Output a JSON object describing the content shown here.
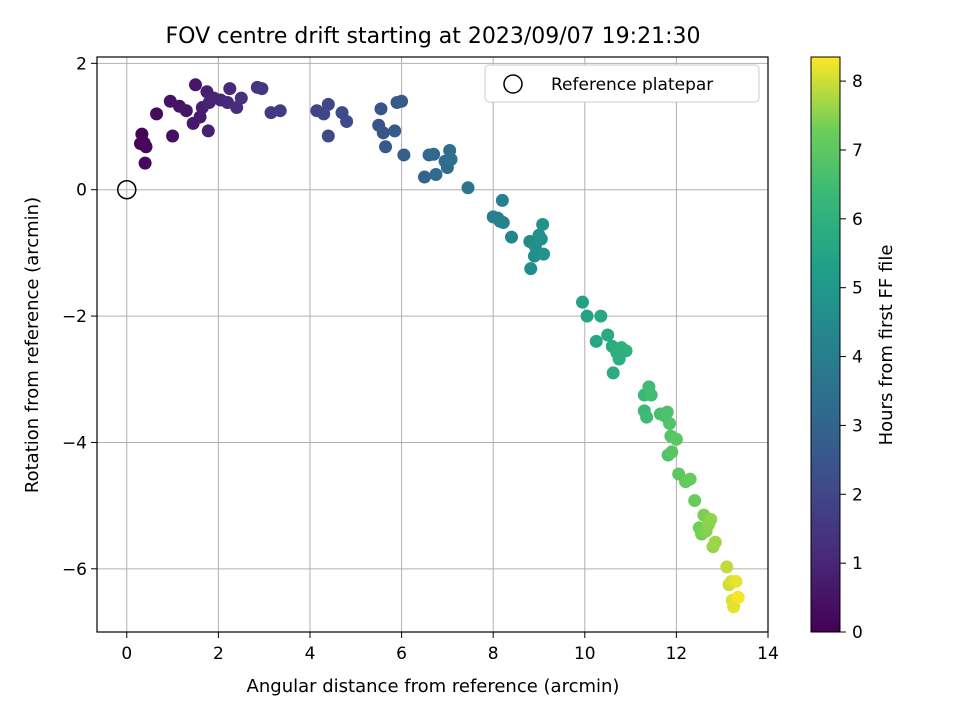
{
  "chart_data": {
    "type": "scatter",
    "title": "FOV centre drift starting at 2023/09/07 19:21:30",
    "xlabel": "Angular distance from reference (arcmin)",
    "ylabel": "Rotation from reference (arcmin)",
    "xlim": [
      -0.65,
      14
    ],
    "ylim": [
      -7,
      2.1
    ],
    "xticks": [
      0,
      2,
      4,
      6,
      8,
      10,
      12,
      14
    ],
    "yticks": [
      2,
      0,
      -2,
      -4,
      -6
    ],
    "grid": true,
    "legend": {
      "position": "top-right",
      "entries": [
        "Reference platepar"
      ]
    },
    "reference_point": {
      "x": 0,
      "y": 0,
      "label": "Reference platepar"
    },
    "colorbar": {
      "label": "Hours from first FF file",
      "min": 0,
      "max": 8.35,
      "ticks": [
        0,
        1,
        2,
        3,
        4,
        5,
        6,
        7,
        8
      ],
      "colormap": "viridis"
    },
    "points": [
      {
        "x": 0.33,
        "y": 0.88,
        "h": 0.05
      },
      {
        "x": 0.3,
        "y": 0.73,
        "h": 0.1
      },
      {
        "x": 0.38,
        "y": 0.74,
        "h": 0.15
      },
      {
        "x": 0.42,
        "y": 0.68,
        "h": 0.2
      },
      {
        "x": 0.4,
        "y": 0.42,
        "h": 0.25
      },
      {
        "x": 0.65,
        "y": 1.2,
        "h": 0.3
      },
      {
        "x": 1.0,
        "y": 0.85,
        "h": 0.4
      },
      {
        "x": 0.95,
        "y": 1.4,
        "h": 0.45
      },
      {
        "x": 1.15,
        "y": 1.32,
        "h": 0.5
      },
      {
        "x": 1.3,
        "y": 1.25,
        "h": 0.55
      },
      {
        "x": 1.5,
        "y": 1.66,
        "h": 0.6
      },
      {
        "x": 1.45,
        "y": 1.05,
        "h": 0.65
      },
      {
        "x": 1.6,
        "y": 1.15,
        "h": 0.7
      },
      {
        "x": 1.65,
        "y": 1.3,
        "h": 0.75
      },
      {
        "x": 1.75,
        "y": 1.55,
        "h": 0.8
      },
      {
        "x": 1.78,
        "y": 0.93,
        "h": 0.85
      },
      {
        "x": 1.8,
        "y": 1.38,
        "h": 0.9
      },
      {
        "x": 1.9,
        "y": 1.45,
        "h": 0.95
      },
      {
        "x": 2.05,
        "y": 1.42,
        "h": 1.0
      },
      {
        "x": 2.2,
        "y": 1.38,
        "h": 1.05
      },
      {
        "x": 2.25,
        "y": 1.6,
        "h": 1.1
      },
      {
        "x": 2.4,
        "y": 1.3,
        "h": 1.2
      },
      {
        "x": 2.5,
        "y": 1.45,
        "h": 1.3
      },
      {
        "x": 2.85,
        "y": 1.62,
        "h": 1.4
      },
      {
        "x": 2.95,
        "y": 1.6,
        "h": 1.5
      },
      {
        "x": 3.15,
        "y": 1.22,
        "h": 1.6
      },
      {
        "x": 3.35,
        "y": 1.25,
        "h": 1.7
      },
      {
        "x": 4.15,
        "y": 1.25,
        "h": 1.9
      },
      {
        "x": 4.3,
        "y": 1.2,
        "h": 1.95
      },
      {
        "x": 4.4,
        "y": 1.35,
        "h": 2.0
      },
      {
        "x": 4.4,
        "y": 0.85,
        "h": 2.05
      },
      {
        "x": 4.7,
        "y": 1.22,
        "h": 2.1
      },
      {
        "x": 4.8,
        "y": 1.08,
        "h": 2.15
      },
      {
        "x": 5.5,
        "y": 1.02,
        "h": 2.4
      },
      {
        "x": 5.55,
        "y": 1.28,
        "h": 2.45
      },
      {
        "x": 5.6,
        "y": 0.9,
        "h": 2.5
      },
      {
        "x": 5.65,
        "y": 0.68,
        "h": 2.55
      },
      {
        "x": 5.85,
        "y": 0.93,
        "h": 2.6
      },
      {
        "x": 5.9,
        "y": 1.38,
        "h": 2.65
      },
      {
        "x": 6.0,
        "y": 1.4,
        "h": 2.7
      },
      {
        "x": 6.05,
        "y": 0.55,
        "h": 2.8
      },
      {
        "x": 6.5,
        "y": 0.2,
        "h": 3.0
      },
      {
        "x": 6.6,
        "y": 0.55,
        "h": 3.1
      },
      {
        "x": 6.7,
        "y": 0.56,
        "h": 3.15
      },
      {
        "x": 6.75,
        "y": 0.24,
        "h": 3.2
      },
      {
        "x": 6.95,
        "y": 0.45,
        "h": 3.3
      },
      {
        "x": 7.0,
        "y": 0.35,
        "h": 3.35
      },
      {
        "x": 7.05,
        "y": 0.62,
        "h": 3.4
      },
      {
        "x": 7.08,
        "y": 0.48,
        "h": 3.45
      },
      {
        "x": 7.45,
        "y": 0.03,
        "h": 3.7
      },
      {
        "x": 8.0,
        "y": -0.43,
        "h": 4.0
      },
      {
        "x": 8.1,
        "y": -0.45,
        "h": 4.05
      },
      {
        "x": 8.15,
        "y": -0.5,
        "h": 4.1
      },
      {
        "x": 8.2,
        "y": -0.17,
        "h": 4.15
      },
      {
        "x": 8.22,
        "y": -0.52,
        "h": 4.2
      },
      {
        "x": 8.4,
        "y": -0.75,
        "h": 4.3
      },
      {
        "x": 8.8,
        "y": -0.82,
        "h": 4.5
      },
      {
        "x": 8.82,
        "y": -1.25,
        "h": 4.55
      },
      {
        "x": 8.9,
        "y": -1.05,
        "h": 4.6
      },
      {
        "x": 8.92,
        "y": -0.9,
        "h": 4.65
      },
      {
        "x": 9.0,
        "y": -0.72,
        "h": 4.7
      },
      {
        "x": 9.05,
        "y": -0.78,
        "h": 4.75
      },
      {
        "x": 9.08,
        "y": -0.55,
        "h": 4.8
      },
      {
        "x": 9.1,
        "y": -1.02,
        "h": 4.85
      },
      {
        "x": 9.95,
        "y": -1.78,
        "h": 5.4
      },
      {
        "x": 10.05,
        "y": -2.0,
        "h": 5.45
      },
      {
        "x": 10.25,
        "y": -2.4,
        "h": 5.55
      },
      {
        "x": 10.35,
        "y": -2.0,
        "h": 5.6
      },
      {
        "x": 10.5,
        "y": -2.3,
        "h": 5.7
      },
      {
        "x": 10.6,
        "y": -2.48,
        "h": 5.75
      },
      {
        "x": 10.62,
        "y": -2.9,
        "h": 5.8
      },
      {
        "x": 10.7,
        "y": -2.58,
        "h": 5.85
      },
      {
        "x": 10.75,
        "y": -2.68,
        "h": 5.9
      },
      {
        "x": 10.8,
        "y": -2.5,
        "h": 5.95
      },
      {
        "x": 10.9,
        "y": -2.55,
        "h": 6.0
      },
      {
        "x": 11.3,
        "y": -3.25,
        "h": 6.3
      },
      {
        "x": 11.3,
        "y": -3.5,
        "h": 6.35
      },
      {
        "x": 11.35,
        "y": -3.6,
        "h": 6.4
      },
      {
        "x": 11.4,
        "y": -3.12,
        "h": 6.45
      },
      {
        "x": 11.45,
        "y": -3.25,
        "h": 6.5
      },
      {
        "x": 11.65,
        "y": -3.55,
        "h": 6.6
      },
      {
        "x": 11.75,
        "y": -3.58,
        "h": 6.65
      },
      {
        "x": 11.8,
        "y": -3.52,
        "h": 6.7
      },
      {
        "x": 11.82,
        "y": -4.2,
        "h": 6.75
      },
      {
        "x": 11.85,
        "y": -3.7,
        "h": 6.8
      },
      {
        "x": 11.88,
        "y": -3.9,
        "h": 6.85
      },
      {
        "x": 11.9,
        "y": -4.15,
        "h": 6.9
      },
      {
        "x": 12.0,
        "y": -3.95,
        "h": 6.95
      },
      {
        "x": 12.05,
        "y": -4.5,
        "h": 7.0
      },
      {
        "x": 12.2,
        "y": -4.62,
        "h": 7.1
      },
      {
        "x": 12.3,
        "y": -4.58,
        "h": 7.15
      },
      {
        "x": 12.4,
        "y": -4.92,
        "h": 7.2
      },
      {
        "x": 12.5,
        "y": -5.35,
        "h": 7.3
      },
      {
        "x": 12.55,
        "y": -5.45,
        "h": 7.35
      },
      {
        "x": 12.6,
        "y": -5.15,
        "h": 7.4
      },
      {
        "x": 12.65,
        "y": -5.4,
        "h": 7.45
      },
      {
        "x": 12.7,
        "y": -5.3,
        "h": 7.5
      },
      {
        "x": 12.75,
        "y": -5.22,
        "h": 7.55
      },
      {
        "x": 12.8,
        "y": -5.65,
        "h": 7.6
      },
      {
        "x": 12.85,
        "y": -5.58,
        "h": 7.65
      },
      {
        "x": 13.1,
        "y": -5.97,
        "h": 7.9
      },
      {
        "x": 13.15,
        "y": -6.25,
        "h": 8.0
      },
      {
        "x": 13.2,
        "y": -6.2,
        "h": 8.05
      },
      {
        "x": 13.22,
        "y": -6.5,
        "h": 8.1
      },
      {
        "x": 13.25,
        "y": -6.6,
        "h": 8.15
      },
      {
        "x": 13.3,
        "y": -6.2,
        "h": 8.2
      },
      {
        "x": 13.35,
        "y": -6.45,
        "h": 8.3
      }
    ]
  }
}
